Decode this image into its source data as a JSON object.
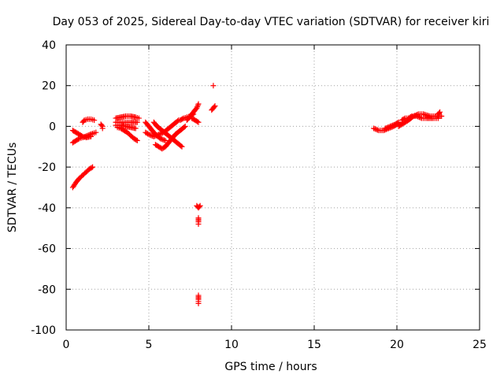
{
  "chart_data": {
    "type": "scatter",
    "title": "Day 053 of 2025, Sidereal Day-to-day VTEC variation (SDTVAR) for receiver kiri",
    "xlabel": "GPS time / hours",
    "ylabel": "SDTVAR / TECUs",
    "xlim": [
      0,
      25
    ],
    "ylim": [
      -100,
      40
    ],
    "xticks": [
      0,
      5,
      10,
      15,
      20,
      25
    ],
    "yticks": [
      -100,
      -80,
      -60,
      -40,
      -20,
      0,
      20,
      40
    ],
    "grid": true,
    "marker": "+",
    "color": "#ff0000",
    "series": [
      {
        "segments": [
          [
            [
              0.4,
              -30
            ],
            [
              0.6,
              -27.5
            ],
            [
              0.8,
              -25.5
            ],
            [
              1.0,
              -24
            ],
            [
              1.2,
              -22.5
            ],
            [
              1.4,
              -21
            ],
            [
              1.6,
              -20
            ]
          ],
          [
            [
              0.4,
              -2
            ],
            [
              0.6,
              -3
            ],
            [
              0.8,
              -4
            ],
            [
              1.0,
              -5
            ],
            [
              1.2,
              -5.5
            ],
            [
              1.5,
              -5
            ]
          ],
          [
            [
              0.4,
              -8
            ],
            [
              0.6,
              -7
            ],
            [
              0.8,
              -6
            ],
            [
              1.0,
              -5.5
            ],
            [
              1.3,
              -4.5
            ],
            [
              1.6,
              -3.5
            ],
            [
              1.8,
              -3
            ]
          ],
          [
            [
              1.0,
              2
            ],
            [
              1.1,
              3
            ],
            [
              1.3,
              3.5
            ],
            [
              1.5,
              3.5
            ],
            [
              1.7,
              3
            ]
          ],
          [
            [
              2.1,
              1
            ],
            [
              2.2,
              0
            ],
            [
              2.2,
              -1
            ]
          ],
          [
            [
              3.0,
              4
            ],
            [
              3.3,
              4.5
            ],
            [
              3.6,
              5
            ],
            [
              3.9,
              5
            ],
            [
              4.2,
              4.5
            ],
            [
              4.4,
              4
            ]
          ],
          [
            [
              3.0,
              2
            ],
            [
              3.3,
              2
            ],
            [
              3.6,
              2
            ],
            [
              3.9,
              2
            ],
            [
              4.3,
              2
            ]
          ],
          [
            [
              3.1,
              -0.5
            ],
            [
              3.3,
              -1
            ],
            [
              3.5,
              -2
            ],
            [
              3.7,
              -3
            ],
            [
              3.9,
              -4.5
            ],
            [
              4.1,
              -6
            ],
            [
              4.3,
              -7
            ]
          ],
          [
            [
              3.0,
              0.5
            ],
            [
              3.3,
              0.5
            ],
            [
              3.6,
              0
            ],
            [
              3.9,
              -0.5
            ],
            [
              4.2,
              -1
            ]
          ],
          [
            [
              4.8,
              2
            ],
            [
              5.0,
              0
            ],
            [
              5.2,
              -2
            ],
            [
              5.4,
              -4
            ],
            [
              5.7,
              -6
            ],
            [
              6.0,
              -7
            ]
          ],
          [
            [
              4.8,
              -3
            ],
            [
              5.0,
              -4
            ],
            [
              5.3,
              -5
            ],
            [
              5.6,
              -4
            ],
            [
              5.9,
              -3
            ],
            [
              6.2,
              -1
            ],
            [
              6.5,
              1
            ],
            [
              6.8,
              3
            ]
          ],
          [
            [
              5.4,
              -9
            ],
            [
              5.6,
              -10
            ],
            [
              5.8,
              -11
            ],
            [
              6.0,
              -10
            ],
            [
              6.2,
              -8
            ],
            [
              6.4,
              -6
            ],
            [
              6.6,
              -4
            ],
            [
              6.9,
              -2
            ],
            [
              7.2,
              0
            ]
          ],
          [
            [
              5.3,
              2
            ],
            [
              5.5,
              0
            ],
            [
              5.8,
              -2
            ],
            [
              6.1,
              -4
            ],
            [
              6.4,
              -6
            ],
            [
              6.7,
              -8
            ],
            [
              7.0,
              -10
            ]
          ],
          [
            [
              6.9,
              3
            ],
            [
              7.1,
              4
            ],
            [
              7.3,
              4.5
            ],
            [
              7.5,
              5
            ],
            [
              7.7,
              6
            ]
          ],
          [
            [
              7.3,
              3
            ],
            [
              7.5,
              5
            ],
            [
              7.7,
              7
            ],
            [
              7.9,
              9
            ],
            [
              8.0,
              11
            ]
          ],
          [
            [
              7.6,
              4
            ],
            [
              7.8,
              3
            ],
            [
              8.0,
              2
            ]
          ],
          [
            [
              7.9,
              -39
            ],
            [
              8.0,
              -40
            ],
            [
              8.1,
              -39
            ]
          ],
          [
            [
              8.0,
              -45
            ],
            [
              8.0,
              -47
            ],
            [
              8.0,
              -48
            ]
          ],
          [
            [
              8.0,
              -83
            ],
            [
              8.0,
              -85
            ],
            [
              8.0,
              -86
            ],
            [
              8.0,
              -87
            ]
          ],
          [
            [
              8.8,
              8
            ],
            [
              8.9,
              9
            ],
            [
              9.0,
              10
            ]
          ],
          [
            [
              8.9,
              20
            ]
          ],
          [
            [
              18.6,
              -1
            ],
            [
              18.9,
              -2
            ],
            [
              19.2,
              -2
            ],
            [
              19.5,
              -1
            ],
            [
              19.8,
              0
            ],
            [
              20.0,
              1
            ],
            [
              20.2,
              1
            ]
          ],
          [
            [
              19.3,
              -1
            ],
            [
              19.6,
              0
            ],
            [
              19.9,
              1
            ],
            [
              20.1,
              2
            ]
          ],
          [
            [
              20.1,
              0
            ],
            [
              20.3,
              1
            ],
            [
              20.5,
              2
            ],
            [
              20.7,
              3
            ],
            [
              21.0,
              5
            ],
            [
              21.3,
              6
            ],
            [
              21.6,
              6
            ],
            [
              22.0,
              5
            ],
            [
              22.3,
              5
            ],
            [
              22.7,
              5
            ]
          ],
          [
            [
              20.3,
              3
            ],
            [
              20.5,
              4
            ],
            [
              20.7,
              4
            ],
            [
              20.9,
              5
            ],
            [
              21.2,
              5
            ],
            [
              21.5,
              4
            ],
            [
              21.8,
              4
            ],
            [
              22.2,
              4
            ],
            [
              22.5,
              4
            ]
          ],
          [
            [
              22.5,
              6
            ],
            [
              22.6,
              7
            ]
          ]
        ]
      }
    ]
  }
}
